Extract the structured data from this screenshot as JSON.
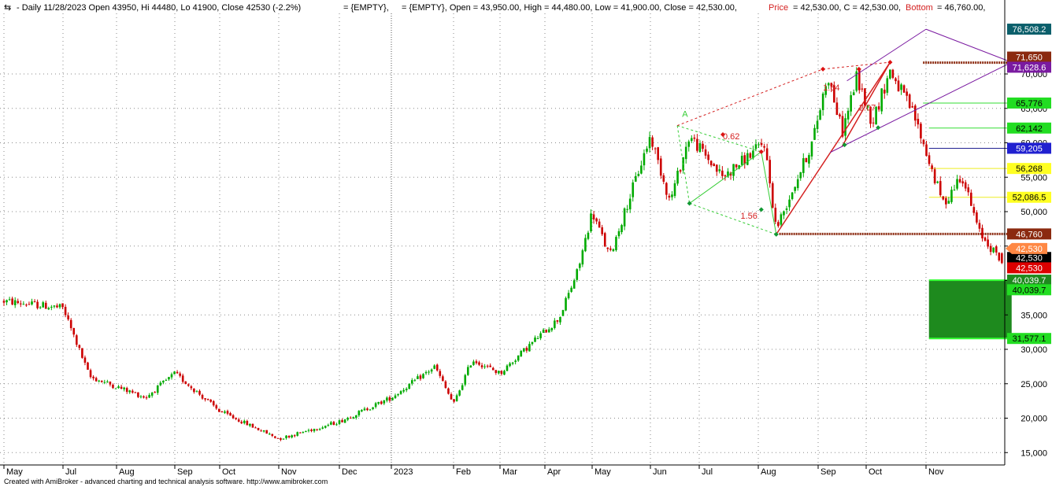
{
  "header": {
    "icon_glyph": "⇆",
    "symbol_info": "- Daily 11/28/2023 Open 43950, Hi 44480, Lo 41900, Close 42530 (-2.2%)",
    "empty1": "= {EMPTY},",
    "empty2": "= {EMPTY}, Open = 43,950.00, High = 44,480.00, Low = 41,900.00, Close = 42,530.00,",
    "price_label": "Price",
    "price_value": "= 42,530.00, C = 42,530.00,",
    "bottom_label": "Bottom",
    "bottom_value": "= 46,760.00,"
  },
  "footer": {
    "credit": "Created with AmiBroker - advanced charting and technical analysis software. http://www.amibroker.com"
  },
  "colors": {
    "up": "#00aa00",
    "down": "#cc0000",
    "grid": "#8a8a8a",
    "target_box": "#1e8a1e",
    "bottom_line": "#8b2a10",
    "purple": "#7a1aa0",
    "fib_red": "#d42020",
    "fib_green": "#33cc33"
  },
  "chart_data": {
    "type": "candlestick",
    "x_axis_labels": [
      "May",
      "Jul",
      "Aug",
      "Sep",
      "Oct",
      "Nov",
      "Dec",
      "2023",
      "Feb",
      "Mar",
      "Apr",
      "May",
      "Jun",
      "Jul",
      "Aug",
      "Sep",
      "Oct",
      "Nov"
    ],
    "y_ticks": [
      15000,
      20000,
      25000,
      30000,
      35000,
      40000,
      45000,
      50000,
      55000,
      60000,
      65000,
      70000
    ],
    "y_tick_labels": [
      "15,000",
      "20,000",
      "25,000",
      "30,000",
      "35,000",
      "40,000",
      "45,000",
      "50,000",
      "55,000",
      "60,000",
      "65,000",
      "70,000"
    ],
    "ylim": [
      13200,
      78800
    ],
    "last_bar": {
      "date": "11/28/2023",
      "open": 43950,
      "high": 44480,
      "low": 41900,
      "close": 42530,
      "change_pct": -2.2
    },
    "anchor_points": [
      {
        "month_index": 0,
        "price": 37000
      },
      {
        "month_index": 1,
        "price": 36000
      },
      {
        "month_index": 1.5,
        "price": 26000
      },
      {
        "month_index": 2.5,
        "price": 23000
      },
      {
        "month_index": 3,
        "price": 26500
      },
      {
        "month_index": 4,
        "price": 21000
      },
      {
        "month_index": 5,
        "price": 17000
      },
      {
        "month_index": 6,
        "price": 19500
      },
      {
        "month_index": 7,
        "price": 23000
      },
      {
        "month_index": 7.7,
        "price": 27500
      },
      {
        "month_index": 8,
        "price": 22000
      },
      {
        "month_index": 8.4,
        "price": 28500
      },
      {
        "month_index": 9,
        "price": 26500
      },
      {
        "month_index": 9.8,
        "price": 31500
      },
      {
        "month_index": 10.3,
        "price": 34500
      },
      {
        "month_index": 10.7,
        "price": 41500
      },
      {
        "month_index": 11,
        "price": 50000
      },
      {
        "month_index": 11.3,
        "price": 43500
      },
      {
        "month_index": 11.6,
        "price": 51000
      },
      {
        "month_index": 12,
        "price": 61000
      },
      {
        "month_index": 12.4,
        "price": 51500
      },
      {
        "month_index": 12.8,
        "price": 61000
      },
      {
        "month_index": 13.4,
        "price": 55000
      },
      {
        "month_index": 14.1,
        "price": 60000
      },
      {
        "month_index": 14.3,
        "price": 47500
      },
      {
        "month_index": 14.9,
        "price": 60000
      },
      {
        "month_index": 15.2,
        "price": 70000
      },
      {
        "month_index": 15.5,
        "price": 61500
      },
      {
        "month_index": 15.8,
        "price": 69500
      },
      {
        "month_index": 16.1,
        "price": 63000
      },
      {
        "month_index": 16.4,
        "price": 70500
      },
      {
        "month_index": 16.8,
        "price": 64000
      },
      {
        "month_index": 17.1,
        "price": 56000
      },
      {
        "month_index": 17.3,
        "price": 51000
      },
      {
        "month_index": 17.6,
        "price": 55500
      },
      {
        "month_index": 17.9,
        "price": 47000
      },
      {
        "month_index": 18.3,
        "price": 42530
      }
    ],
    "fib_labels": [
      {
        "text": "1.64",
        "x_index": 15.1,
        "price": 67600
      },
      {
        "text": "2.07",
        "x_index": 15.85,
        "price": 64700
      },
      {
        "text": "0.62",
        "x_index": 13.4,
        "price": 60500
      },
      {
        "text": "1.56",
        "x_index": 13.7,
        "price": 49000
      },
      {
        "text": "A",
        "x_index": 12.65,
        "price": 63800
      }
    ],
    "horizontal_levels": [
      {
        "price": 71650,
        "color": "#8b2a10",
        "x_index_start": 16.95,
        "x_index_end": 18.45,
        "dashed": true
      },
      {
        "price": 65776,
        "color": "#33dd33",
        "x_index_start": 16.95,
        "x_index_end": 18.45,
        "dashed": false
      },
      {
        "price": 62142,
        "color": "#33dd33",
        "x_index_start": 17.05,
        "x_index_end": 18.45,
        "dashed": false
      },
      {
        "price": 59205,
        "color": "#202090",
        "x_index_start": 17.05,
        "x_index_end": 18.45,
        "dashed": false
      },
      {
        "price": 56268,
        "color": "#eeee22",
        "x_index_start": 17.05,
        "x_index_end": 18.45,
        "dashed": false
      },
      {
        "price": 52086.5,
        "color": "#eeee22",
        "x_index_start": 17.05,
        "x_index_end": 18.45,
        "dashed": false
      },
      {
        "price": 46760,
        "color": "#8b2a10",
        "x_index_start": 14.35,
        "x_index_end": 18.45,
        "dashed": true
      }
    ],
    "target_box": {
      "price_top": 40039.7,
      "price_bottom": 31577.1
    },
    "right_price_tags": [
      {
        "label": "76,508.2",
        "price": 76508.2,
        "bg": "#0b5f6b",
        "fg": "#ffffff"
      },
      {
        "label": "71,650",
        "price": 72450,
        "bg": "#8b2a10",
        "fg": "#ffffff"
      },
      {
        "label": "71,628.6",
        "price": 70980,
        "bg": "#7a1aa0",
        "fg": "#ffffff"
      },
      {
        "label": "65,776",
        "price": 65776,
        "bg": "#22dd22",
        "fg": "#000000"
      },
      {
        "label": "62,142",
        "price": 62142,
        "bg": "#22dd22",
        "fg": "#000000"
      },
      {
        "label": "59,205",
        "price": 59205,
        "bg": "#2020d0",
        "fg": "#ffffff"
      },
      {
        "label": "56,268",
        "price": 56268,
        "bg": "#ffff22",
        "fg": "#000000"
      },
      {
        "label": "52,086.5",
        "price": 52086.5,
        "bg": "#ffff22",
        "fg": "#000000"
      },
      {
        "label": "46,760",
        "price": 46760,
        "bg": "#8b2a10",
        "fg": "#ffffff"
      },
      {
        "label": "42,530",
        "price": 43340,
        "bg": "#000000",
        "fg": "#ffffff"
      },
      {
        "label": "42,530",
        "price": 41840,
        "bg": "#dd0000",
        "fg": "#ffffff"
      },
      {
        "label": "40,039.7",
        "price": 40050,
        "bg": "#1e8a1e",
        "fg": "#ffffff"
      },
      {
        "label": "40,039.7",
        "price": 38650,
        "bg": "#22dd22",
        "fg": "#000000"
      },
      {
        "label": "31,577.1",
        "price": 31577.1,
        "bg": "#22dd22",
        "fg": "#000000"
      }
    ],
    "last_price_arrow": {
      "label": "42,530",
      "price": 44650,
      "bg": "#ff8844",
      "fg": "#ffffff"
    }
  }
}
